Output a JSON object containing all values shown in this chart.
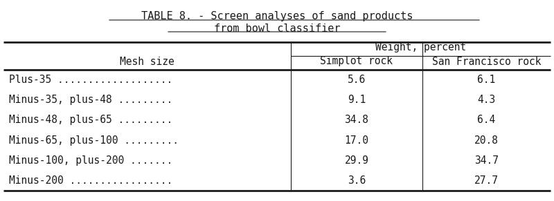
{
  "title_line1": "TABLE 8. - Screen analyses of sand products",
  "title_line2": "from bowl classifier",
  "col_header_span": "Weight, percent",
  "col1_header": "Mesh size",
  "col2_header": "Simplot rock",
  "col3_header": "San Francisco rock",
  "mesh_col_labels": [
    "Plus-35 ...................",
    "Minus-35, plus-48 .........",
    "Minus-48, plus-65 .........",
    "Minus-65, plus-100 .........",
    "Minus-100, plus-200 .......",
    "Minus-200 ................."
  ],
  "simplot_vals": [
    "5.6",
    "9.1",
    "34.8",
    "17.0",
    "29.9",
    "3.6"
  ],
  "sf_vals": [
    "6.1",
    "4.3",
    "6.4",
    "20.8",
    "34.7",
    "27.7"
  ],
  "bg_color": "#ffffff",
  "text_color": "#1a1a1a",
  "font_size": 10.5,
  "title_font_size": 11
}
